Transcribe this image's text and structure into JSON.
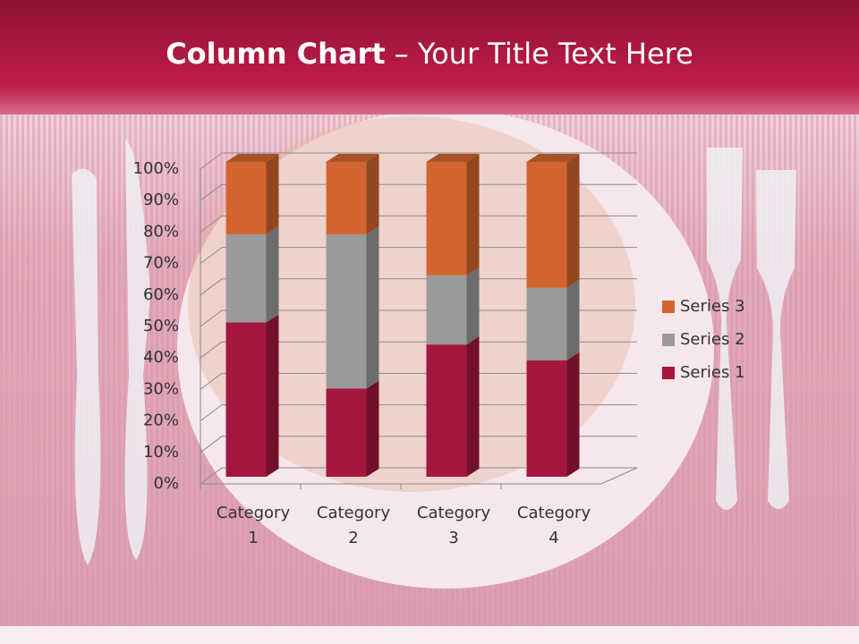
{
  "chart_data": {
    "type": "bar",
    "title": {
      "bold": "Column Chart",
      "rest": "– Your Title Text Here"
    },
    "stacked": "percent",
    "categories": [
      "Category 1",
      "Category 2",
      "Category 3",
      "Category 4"
    ],
    "series": [
      {
        "name": "Series 1",
        "color": "#a3173f",
        "values": [
          49,
          28,
          42,
          37
        ]
      },
      {
        "name": "Series 2",
        "color": "#9a9a9a",
        "values": [
          28,
          49,
          22,
          23
        ]
      },
      {
        "name": "Series 3",
        "color": "#d2652f",
        "values": [
          23,
          23,
          36,
          40
        ]
      }
    ],
    "ylim": [
      0,
      100
    ],
    "yticks": [
      {
        "value": 0,
        "label": "0%"
      },
      {
        "value": 10,
        "label": "10%"
      },
      {
        "value": 20,
        "label": "20%"
      },
      {
        "value": 30,
        "label": "30%"
      },
      {
        "value": 40,
        "label": "40%"
      },
      {
        "value": 50,
        "label": "50%"
      },
      {
        "value": 60,
        "label": "60%"
      },
      {
        "value": 70,
        "label": "70%"
      },
      {
        "value": 80,
        "label": "80%"
      },
      {
        "value": 90,
        "label": "90%"
      },
      {
        "value": 100,
        "label": "100%"
      }
    ],
    "grid": true,
    "legend": "right"
  }
}
